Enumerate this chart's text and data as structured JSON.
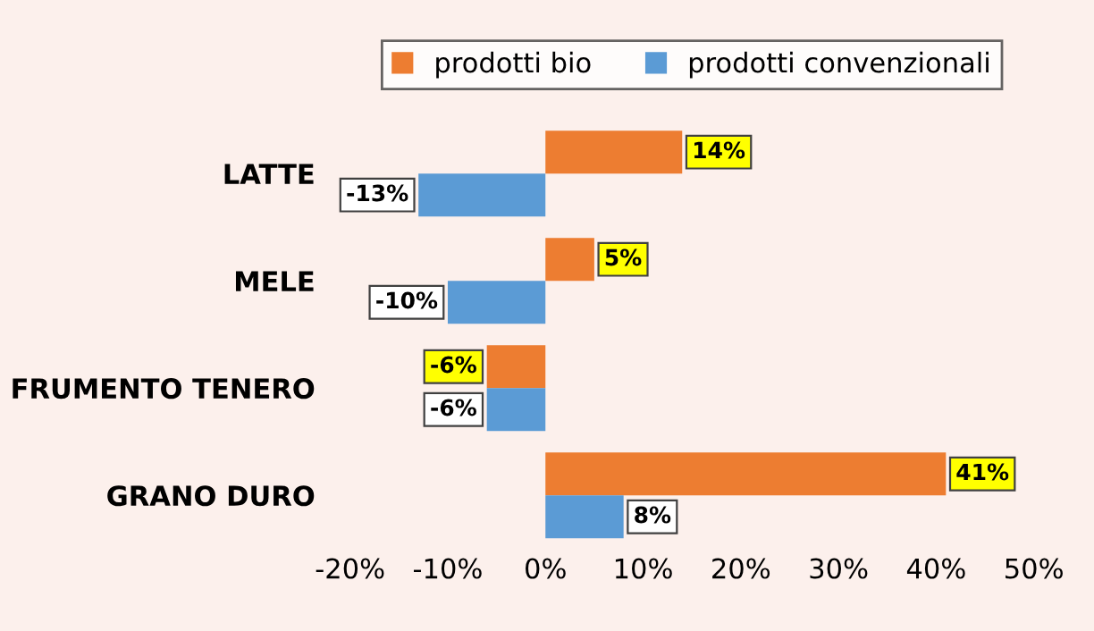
{
  "chart_data": {
    "type": "bar",
    "orientation": "horizontal",
    "categories": [
      "LATTE",
      "MELE",
      "FRUMENTO TENERO",
      "GRANO DURO"
    ],
    "series": [
      {
        "name": "prodotti bio",
        "color": "#ed7d31",
        "values": [
          14,
          5,
          -6,
          41
        ],
        "value_labels": [
          "14%",
          "5%",
          "-6%",
          "41%"
        ]
      },
      {
        "name": "prodotti convenzionali",
        "color": "#5b9bd5",
        "values": [
          -13,
          -10,
          -6,
          8
        ],
        "value_labels": [
          "-13%",
          "-10%",
          "-6%",
          "8%"
        ]
      }
    ],
    "xlim": [
      -20,
      50
    ],
    "xticks": [
      {
        "value": -20,
        "label": "-20%"
      },
      {
        "value": -10,
        "label": "-10%"
      },
      {
        "value": 0,
        "label": "0%"
      },
      {
        "value": 10,
        "label": "10%"
      },
      {
        "value": 20,
        "label": "20%"
      },
      {
        "value": 30,
        "label": "30%"
      },
      {
        "value": 40,
        "label": "40%"
      },
      {
        "value": 50,
        "label": "50%"
      }
    ],
    "grid": false,
    "legend": "top"
  }
}
